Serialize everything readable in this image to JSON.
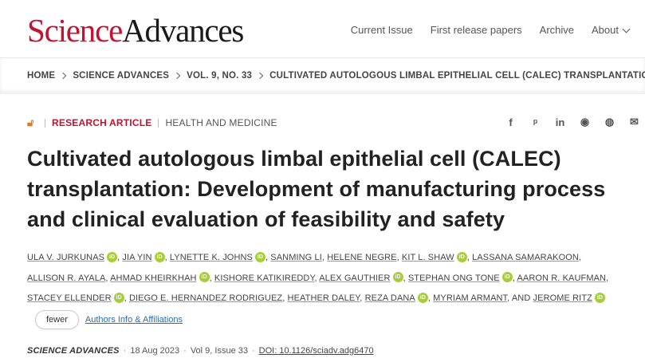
{
  "header": {
    "logo_science": "Science",
    "logo_advances": "Advances",
    "nav": [
      {
        "label": "Current Issue"
      },
      {
        "label": "First release papers"
      },
      {
        "label": "Archive"
      },
      {
        "label": "About"
      }
    ]
  },
  "breadcrumb": [
    "HOME",
    "SCIENCE ADVANCES",
    "VOL. 9, NO. 33",
    "CULTIVATED AUTOLOGOUS LIMBAL EPITHELIAL CELL (CALEC) TRANSPLANTATION:..."
  ],
  "article": {
    "type": "RESEARCH ARTICLE",
    "subject": "HEALTH AND MEDICINE",
    "title": "Cultivated autologous limbal epithelial cell (CALEC) transplantation: Development of manufacturing process and clinical evaluation of feasibility and safety",
    "authors": [
      {
        "name": "ULA V. JURKUNAS",
        "orcid": true
      },
      {
        "name": "JIA YIN",
        "orcid": true
      },
      {
        "name": "LYNETTE K. JOHNS",
        "orcid": true
      },
      {
        "name": "SANMING LI",
        "orcid": false
      },
      {
        "name": "HELENE NEGRE",
        "orcid": false
      },
      {
        "name": "KIT L. SHAW",
        "orcid": true
      },
      {
        "name": "LASSANA SAMARAKOON",
        "orcid": false
      },
      {
        "name": "ALLISON R. AYALA",
        "orcid": false
      },
      {
        "name": "AHMAD KHEIRKHAH",
        "orcid": true
      },
      {
        "name": "KISHORE KATIKIREDDY",
        "orcid": false
      },
      {
        "name": "ALEX GAUTHIER",
        "orcid": true
      },
      {
        "name": "STEPHAN ONG TONE",
        "orcid": true
      },
      {
        "name": "AARON R. KAUFMAN",
        "orcid": false
      },
      {
        "name": "STACEY ELLENDER",
        "orcid": true
      },
      {
        "name": "DIEGO E. HERNANDEZ RODRIGUEZ",
        "orcid": false
      },
      {
        "name": "HEATHER DALEY",
        "orcid": false
      },
      {
        "name": "REZA DANA",
        "orcid": true
      },
      {
        "name": "MYRIAM ARMANT",
        "orcid": false
      },
      {
        "name": "JEROME RITZ",
        "orcid": true
      }
    ],
    "and_text": "AND",
    "orcid_label": "iD",
    "fewer_label": "fewer",
    "affiliations_label": "Authors Info & Affiliations",
    "journal": "SCIENCE ADVANCES",
    "date": "18 Aug 2023",
    "volume": "Vol 9, Issue 33",
    "doi": "DOI: 10.1126/sciadv.adg6470"
  },
  "share_icons": [
    "facebook-icon",
    "twitter-icon",
    "linkedin-icon",
    "reddit-icon",
    "wechat-icon",
    "email-icon"
  ],
  "colors": {
    "brand_red": "#c41230",
    "orcid_green": "#a6ce39",
    "link_blue": "#2a6db0",
    "open_access_orange": "#e07b20"
  }
}
